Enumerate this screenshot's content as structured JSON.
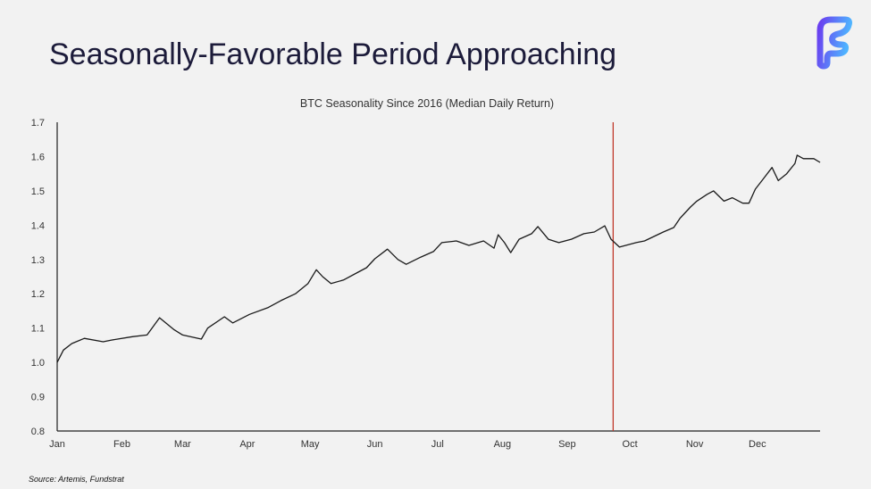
{
  "slide": {
    "title": "Seasonally-Favorable Period Approaching",
    "source": "Source: Artemis, Fundstrat",
    "logo_letter": "F",
    "logo_colors": [
      "#6a3ff0",
      "#4fb4ff"
    ]
  },
  "chart_data": {
    "type": "line",
    "title": "BTC Seasonality Since 2016 (Median Daily Return)",
    "xlabel": "",
    "ylabel": "",
    "x_ticks": [
      "Jan",
      "Feb",
      "Mar",
      "Apr",
      "May",
      "Jun",
      "Jul",
      "Aug",
      "Sep",
      "Oct",
      "Nov",
      "Dec"
    ],
    "y_ticks": [
      "0.8",
      "0.9",
      "1.0",
      "1.1",
      "1.2",
      "1.3",
      "1.4",
      "1.5",
      "1.6",
      "1.7"
    ],
    "ylim": [
      0.8,
      1.7
    ],
    "xlim": [
      "01-01",
      "12-31"
    ],
    "grid": false,
    "line_color": "#1a1a1a",
    "marker_line": {
      "date": "09-23",
      "color": "#c0392b"
    },
    "series": [
      {
        "x": [
          "01-01",
          "01-04",
          "01-08",
          "01-14",
          "01-23",
          "01-27",
          "02-06",
          "02-13",
          "02-19",
          "02-26",
          "03-01",
          "03-10",
          "03-13",
          "03-21",
          "03-25",
          "04-02",
          "04-11",
          "04-17",
          "04-24",
          "04-30",
          "05-04",
          "05-07",
          "05-11",
          "05-17",
          "05-24",
          "05-28",
          "06-01",
          "06-07",
          "06-12",
          "06-16",
          "06-23",
          "06-29",
          "07-03",
          "07-10",
          "07-16",
          "07-23",
          "07-28",
          "07-30",
          "08-02",
          "08-05",
          "08-09",
          "08-15",
          "08-18",
          "08-23",
          "08-28",
          "09-03",
          "09-09",
          "09-14",
          "09-19",
          "09-22",
          "09-26",
          "10-04",
          "10-08",
          "10-17",
          "10-22",
          "10-25",
          "10-30",
          "11-02",
          "11-07",
          "11-10",
          "11-15",
          "11-19",
          "11-24",
          "11-27",
          "11-30",
          "12-04",
          "12-08",
          "12-11",
          "12-15",
          "12-19",
          "12-20",
          "12-23",
          "12-28",
          "12-31"
        ],
        "y": [
          1.0,
          1.036,
          1.055,
          1.07,
          1.06,
          1.065,
          1.075,
          1.08,
          1.13,
          1.095,
          1.08,
          1.068,
          1.1,
          1.133,
          1.115,
          1.14,
          1.16,
          1.18,
          1.2,
          1.23,
          1.27,
          1.25,
          1.23,
          1.24,
          1.263,
          1.276,
          1.302,
          1.33,
          1.3,
          1.286,
          1.307,
          1.323,
          1.349,
          1.354,
          1.341,
          1.354,
          1.333,
          1.372,
          1.349,
          1.32,
          1.359,
          1.375,
          1.396,
          1.359,
          1.349,
          1.359,
          1.375,
          1.38,
          1.398,
          1.359,
          1.336,
          1.349,
          1.354,
          1.38,
          1.393,
          1.42,
          1.453,
          1.47,
          1.49,
          1.5,
          1.47,
          1.48,
          1.464,
          1.464,
          1.505,
          1.536,
          1.568,
          1.53,
          1.55,
          1.58,
          1.604,
          1.594,
          1.594,
          1.583
        ]
      }
    ]
  }
}
